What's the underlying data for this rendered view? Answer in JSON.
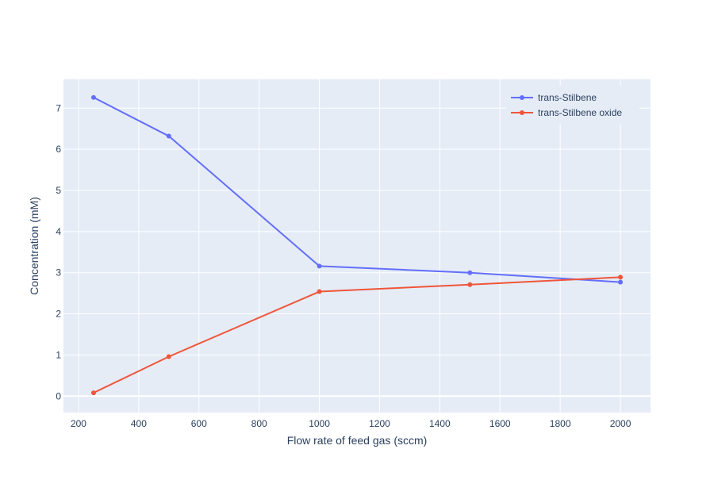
{
  "chart_data": {
    "type": "line",
    "title": "",
    "xlabel": "Flow rate of feed gas (sccm)",
    "ylabel": "Concentration (mM)",
    "xlim": [
      150,
      2100
    ],
    "ylim": [
      -0.4,
      7.7
    ],
    "xticks": [
      200,
      400,
      600,
      800,
      1000,
      1200,
      1400,
      1600,
      1800,
      2000
    ],
    "yticks": [
      0,
      1,
      2,
      3,
      4,
      5,
      6,
      7
    ],
    "grid": true,
    "legend_position": "top-right",
    "x": [
      250,
      500,
      1000,
      1500,
      2000
    ],
    "series": [
      {
        "name": "trans-Stilbene",
        "color": "#636efa",
        "values": [
          7.26,
          6.32,
          3.16,
          3.0,
          2.77
        ]
      },
      {
        "name": "trans-Stilbene oxide",
        "color": "#ef553b",
        "values": [
          0.08,
          0.96,
          2.54,
          2.71,
          2.89
        ]
      }
    ],
    "colors": {
      "plot_background": "#e5ecf6",
      "grid": "#ffffff",
      "text": "#2a3f5f"
    }
  }
}
